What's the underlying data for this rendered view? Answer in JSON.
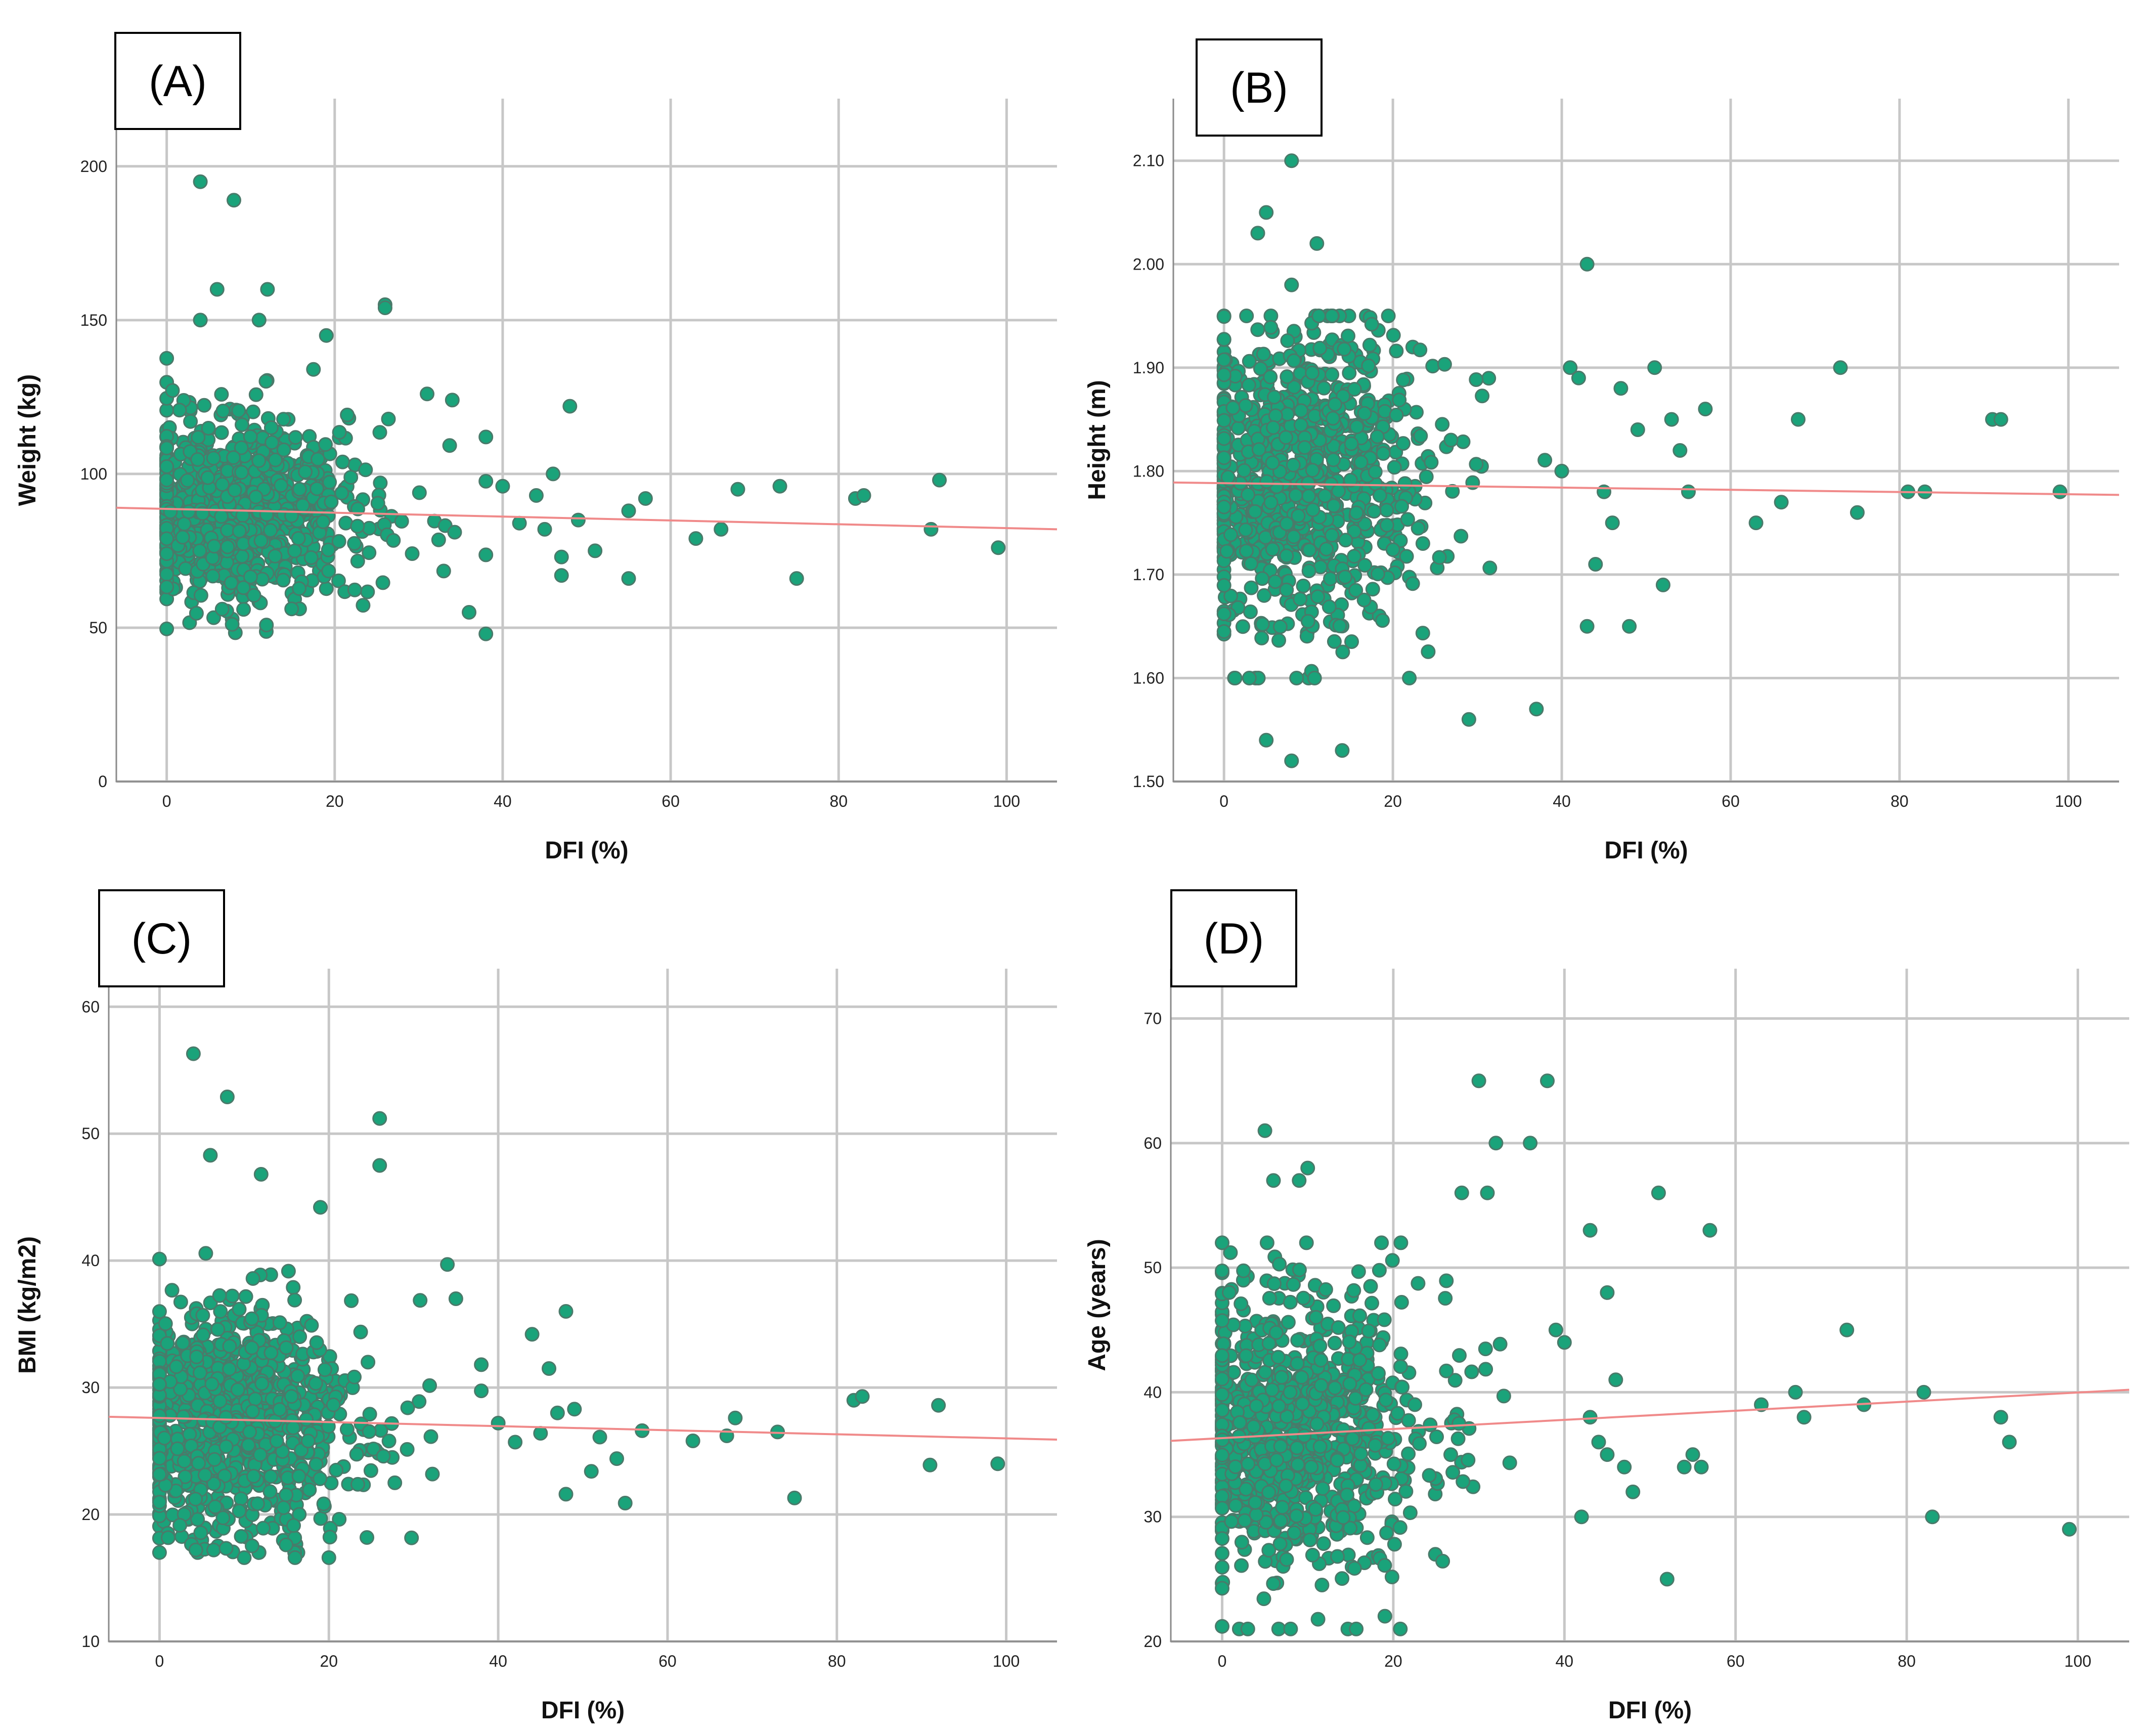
{
  "colors": {
    "point_fill": "#1aa37a",
    "point_stroke": "#4a7a6a",
    "fit_line": "#f08a8a"
  },
  "chart_data": [
    {
      "type": "scatter",
      "panel_label": "(A)",
      "xlabel": "DFI (%)",
      "ylabel": "Weight (kg)",
      "xlim": [
        -6,
        106
      ],
      "ylim": [
        0,
        222
      ],
      "x_ticks": [
        0,
        20,
        40,
        60,
        80,
        100
      ],
      "y_ticks": [
        0,
        50,
        100,
        150,
        200
      ],
      "x_tick_labels": [
        "0",
        "20",
        "40",
        "60",
        "80",
        "100"
      ],
      "y_tick_labels": [
        "0",
        "50",
        "100",
        "150",
        "200"
      ],
      "fit_line": {
        "x": [
          -6,
          106
        ],
        "y": [
          89,
          82
        ]
      },
      "cluster": {
        "x_mode": 9,
        "x_spread": 7,
        "x_max": 38,
        "y_center": 88,
        "y_sd": 15,
        "y_min": 48,
        "y_max": 140,
        "count": 900
      },
      "points": [
        [
          4,
          195
        ],
        [
          8,
          189
        ],
        [
          6,
          160
        ],
        [
          12,
          160
        ],
        [
          11,
          150
        ],
        [
          4,
          150
        ],
        [
          19,
          145
        ],
        [
          26,
          155
        ],
        [
          26,
          154
        ],
        [
          36,
          55
        ],
        [
          48,
          122
        ],
        [
          49,
          85
        ],
        [
          51,
          75
        ],
        [
          55,
          66
        ],
        [
          55,
          88
        ],
        [
          57,
          92
        ],
        [
          63,
          79
        ],
        [
          66,
          82
        ],
        [
          68,
          95
        ],
        [
          73,
          96
        ],
        [
          75,
          66
        ],
        [
          82,
          92
        ],
        [
          83,
          93
        ],
        [
          91,
          82
        ],
        [
          92,
          98
        ],
        [
          99,
          76
        ],
        [
          42,
          84
        ],
        [
          44,
          93
        ],
        [
          46,
          100
        ],
        [
          47,
          73
        ],
        [
          38,
          112
        ],
        [
          40,
          96
        ],
        [
          34,
          124
        ],
        [
          31,
          126
        ],
        [
          45,
          82
        ],
        [
          47,
          67
        ]
      ]
    },
    {
      "type": "scatter",
      "panel_label": "(B)",
      "xlabel": "DFI (%)",
      "ylabel": "Height (m)",
      "xlim": [
        -6,
        106
      ],
      "ylim": [
        1.5,
        2.16
      ],
      "x_ticks": [
        0,
        20,
        40,
        60,
        80,
        100
      ],
      "y_ticks": [
        1.5,
        1.6,
        1.7,
        1.8,
        1.9,
        2.0,
        2.1
      ],
      "x_tick_labels": [
        "0",
        "20",
        "40",
        "60",
        "80",
        "100"
      ],
      "y_tick_labels": [
        "1.50",
        "1.60",
        "1.70",
        "1.80",
        "1.90",
        "2.00",
        "2.10"
      ],
      "fit_line": {
        "x": [
          -6,
          106
        ],
        "y": [
          1.789,
          1.777
        ]
      },
      "cluster": {
        "x_mode": 9,
        "x_spread": 7,
        "x_max": 38,
        "y_center": 1.79,
        "y_sd": 0.075,
        "y_min": 1.6,
        "y_max": 1.95,
        "count": 900
      },
      "points": [
        [
          8,
          2.1
        ],
        [
          5,
          2.05
        ],
        [
          11,
          2.02
        ],
        [
          4,
          2.03
        ],
        [
          43,
          2.0
        ],
        [
          8,
          1.98
        ],
        [
          5,
          1.54
        ],
        [
          8,
          1.52
        ],
        [
          14,
          1.53
        ],
        [
          29,
          1.56
        ],
        [
          37,
          1.57
        ],
        [
          3,
          1.6
        ],
        [
          41,
          1.9
        ],
        [
          42,
          1.89
        ],
        [
          47,
          1.88
        ],
        [
          51,
          1.9
        ],
        [
          53,
          1.85
        ],
        [
          54,
          1.82
        ],
        [
          55,
          1.78
        ],
        [
          52,
          1.69
        ],
        [
          57,
          1.86
        ],
        [
          63,
          1.75
        ],
        [
          66,
          1.77
        ],
        [
          68,
          1.85
        ],
        [
          73,
          1.9
        ],
        [
          75,
          1.76
        ],
        [
          81,
          1.78
        ],
        [
          83,
          1.78
        ],
        [
          91,
          1.85
        ],
        [
          92,
          1.85
        ],
        [
          99,
          1.78
        ],
        [
          43,
          1.65
        ],
        [
          48,
          1.65
        ],
        [
          44,
          1.71
        ],
        [
          49,
          1.84
        ],
        [
          40,
          1.8
        ],
        [
          45,
          1.78
        ],
        [
          46,
          1.75
        ]
      ]
    },
    {
      "type": "scatter",
      "panel_label": "(C)",
      "xlabel": "DFI (%)",
      "ylabel": "BMI (kg/m2)",
      "xlim": [
        -6,
        106
      ],
      "ylim": [
        10,
        63
      ],
      "x_ticks": [
        0,
        20,
        40,
        60,
        80,
        100
      ],
      "y_ticks": [
        10,
        20,
        30,
        40,
        50,
        60
      ],
      "x_tick_labels": [
        "0",
        "20",
        "40",
        "60",
        "80",
        "100"
      ],
      "y_tick_labels": [
        "10",
        "20",
        "30",
        "40",
        "50",
        "60"
      ],
      "fit_line": {
        "x": [
          -6,
          106
        ],
        "y": [
          27.7,
          25.9
        ]
      },
      "cluster": {
        "x_mode": 9,
        "x_spread": 7,
        "x_max": 38,
        "y_center": 27.5,
        "y_sd": 4.5,
        "y_min": 17,
        "y_max": 41,
        "count": 900
      },
      "points": [
        [
          4,
          56.3
        ],
        [
          8,
          52.9
        ],
        [
          26,
          51.2
        ],
        [
          26,
          47.5
        ],
        [
          6,
          48.3
        ],
        [
          12,
          46.8
        ],
        [
          19,
          44.2
        ],
        [
          10,
          16.6
        ],
        [
          16,
          16.6
        ],
        [
          20,
          16.6
        ],
        [
          48,
          36.0
        ],
        [
          44,
          34.2
        ],
        [
          47,
          28.0
        ],
        [
          49,
          28.3
        ],
        [
          51,
          23.4
        ],
        [
          52,
          26.1
        ],
        [
          54,
          24.4
        ],
        [
          55,
          20.9
        ],
        [
          57,
          26.6
        ],
        [
          63,
          25.8
        ],
        [
          67,
          26.2
        ],
        [
          68,
          27.6
        ],
        [
          73,
          26.5
        ],
        [
          75,
          21.3
        ],
        [
          82,
          29.0
        ],
        [
          83,
          29.3
        ],
        [
          91,
          23.9
        ],
        [
          92,
          28.6
        ],
        [
          99,
          24.0
        ],
        [
          42,
          25.7
        ],
        [
          45,
          26.4
        ],
        [
          46,
          31.5
        ],
        [
          48,
          21.6
        ],
        [
          38,
          31.8
        ],
        [
          40,
          27.2
        ],
        [
          34,
          39.7
        ],
        [
          35,
          37.0
        ]
      ]
    },
    {
      "type": "scatter",
      "panel_label": "(D)",
      "xlabel": "DFI (%)",
      "ylabel": "Age (years)",
      "xlim": [
        -6,
        106
      ],
      "ylim": [
        20,
        74
      ],
      "x_ticks": [
        0,
        20,
        40,
        60,
        80,
        100
      ],
      "y_ticks": [
        20,
        30,
        40,
        50,
        60,
        70
      ],
      "x_tick_labels": [
        "0",
        "20",
        "40",
        "60",
        "80",
        "100"
      ],
      "y_tick_labels": [
        "20",
        "30",
        "40",
        "50",
        "60",
        "70"
      ],
      "fit_line": {
        "x": [
          -6,
          106
        ],
        "y": [
          36.1,
          40.2
        ]
      },
      "cluster": {
        "x_mode": 9,
        "x_spread": 7,
        "x_max": 38,
        "y_center": 37,
        "y_sd": 5.8,
        "y_min": 21,
        "y_max": 52,
        "count": 900
      },
      "points": [
        [
          5,
          61
        ],
        [
          10,
          58
        ],
        [
          9,
          57
        ],
        [
          6,
          57
        ],
        [
          30,
          65
        ],
        [
          38,
          65
        ],
        [
          32,
          60
        ],
        [
          36,
          60
        ],
        [
          2,
          21
        ],
        [
          3,
          21
        ],
        [
          8,
          21
        ],
        [
          31,
          56
        ],
        [
          28,
          56
        ],
        [
          43,
          53
        ],
        [
          45,
          48
        ],
        [
          51,
          56
        ],
        [
          52,
          25
        ],
        [
          54,
          34
        ],
        [
          55,
          35
        ],
        [
          56,
          34
        ],
        [
          57,
          53
        ],
        [
          63,
          39
        ],
        [
          67,
          40
        ],
        [
          68,
          38
        ],
        [
          73,
          45
        ],
        [
          75,
          39
        ],
        [
          82,
          40
        ],
        [
          83,
          30
        ],
        [
          91,
          38
        ],
        [
          92,
          36
        ],
        [
          99,
          29
        ],
        [
          42,
          30
        ],
        [
          44,
          36
        ],
        [
          46,
          41
        ],
        [
          47,
          34
        ],
        [
          48,
          32
        ],
        [
          40,
          44
        ],
        [
          39,
          45
        ],
        [
          43,
          38
        ],
        [
          45,
          35
        ]
      ]
    }
  ]
}
